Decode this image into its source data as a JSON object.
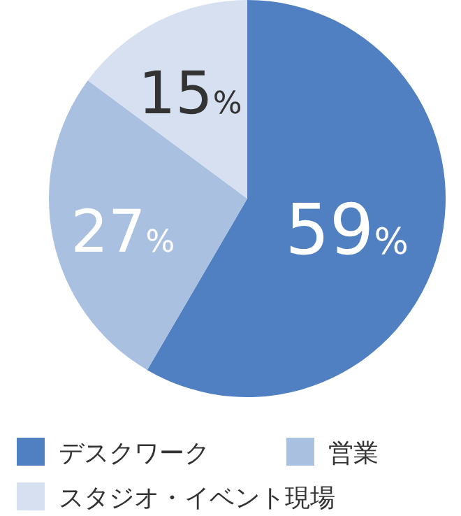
{
  "chart_data": {
    "type": "pie",
    "categories": [
      "デスクワーク",
      "営業",
      "スタジオ・イベント現場"
    ],
    "values": [
      59,
      27,
      15
    ],
    "colors": [
      "#5180c2",
      "#a9c0e1",
      "#d6e0f1"
    ],
    "value_labels": [
      "59%",
      "27%",
      "15%"
    ],
    "legend": "bottom"
  }
}
